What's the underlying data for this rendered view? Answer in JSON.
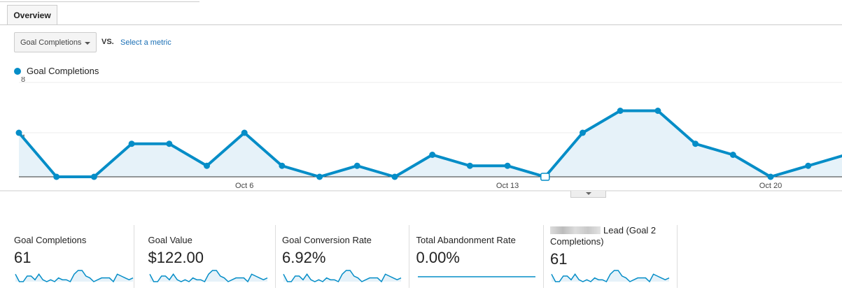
{
  "tabs": {
    "overview": "Overview"
  },
  "controls": {
    "metric_select": "Goal Completions",
    "vs": "VS.",
    "select_metric": "Select a metric"
  },
  "legend": {
    "series": "Goal Completions",
    "color": "#058dc7"
  },
  "chart_data": {
    "type": "area",
    "series": [
      {
        "name": "Goal Completions",
        "values": [
          4,
          0,
          0,
          3,
          3,
          1,
          4,
          1,
          0,
          1,
          0,
          2,
          1,
          1,
          0,
          4,
          6,
          6,
          3,
          2,
          0,
          1,
          2
        ]
      }
    ],
    "x_ticks": [
      {
        "index": 6,
        "label": "Oct 6"
      },
      {
        "index": 13,
        "label": "Oct 13"
      },
      {
        "index": 20,
        "label": "Oct 20"
      }
    ],
    "y_ticks": [
      "4",
      "8"
    ],
    "ylim": [
      0,
      8
    ],
    "grid": true,
    "annotation_index": 14
  },
  "scorecards": [
    {
      "label": "Goal Completions",
      "value": "61",
      "spark": [
        4,
        0,
        0,
        3,
        3,
        1,
        4,
        1,
        0,
        1,
        0,
        2,
        1,
        1,
        0,
        4,
        6,
        6,
        3,
        2,
        0,
        1,
        2,
        2,
        2,
        0,
        4,
        3,
        2,
        1,
        2
      ]
    },
    {
      "label": "Goal Value",
      "value": "$122.00",
      "spark": [
        4,
        0,
        0,
        3,
        3,
        1,
        4,
        1,
        0,
        1,
        0,
        2,
        1,
        1,
        0,
        4,
        6,
        6,
        3,
        2,
        0,
        1,
        2,
        2,
        2,
        0,
        4,
        3,
        2,
        1,
        2
      ]
    },
    {
      "label": "Goal Conversion Rate",
      "value": "6.92%",
      "spark": [
        4,
        0,
        0,
        3,
        3,
        1,
        4,
        1,
        0,
        1,
        0,
        2,
        1,
        1,
        0,
        4,
        6,
        6,
        3,
        2,
        0,
        1,
        2,
        2,
        2,
        0,
        4,
        3,
        2,
        1,
        2
      ]
    },
    {
      "label": "Total Abandonment Rate",
      "value": "0.00%",
      "spark": [
        0,
        0,
        0,
        0,
        0,
        0,
        0,
        0,
        0,
        0,
        0,
        0,
        0,
        0,
        0,
        0,
        0,
        0,
        0,
        0,
        0,
        0,
        0,
        0,
        0,
        0,
        0,
        0,
        0,
        0,
        0
      ]
    },
    {
      "label": "Lead (Goal 2 Completions)",
      "value": "61",
      "spark": [
        4,
        0,
        0,
        3,
        3,
        1,
        4,
        1,
        0,
        1,
        0,
        2,
        1,
        1,
        0,
        4,
        6,
        6,
        3,
        2,
        0,
        1,
        2,
        2,
        2,
        0,
        4,
        3,
        2,
        1,
        2
      ]
    }
  ]
}
